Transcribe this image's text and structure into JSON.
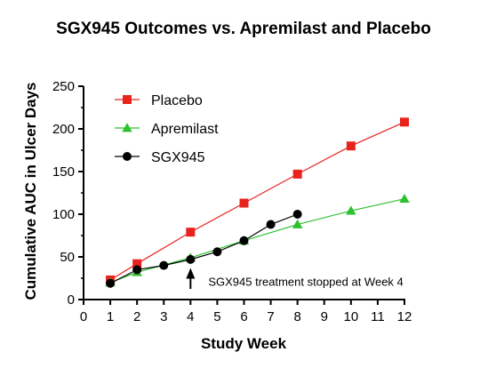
{
  "chart_data": {
    "type": "line",
    "title": "SGX945 Outcomes vs. Apremilast and Placebo",
    "xlabel": "Study Week",
    "ylabel": "Cumulative AUC in Ulcer Days",
    "xlim": [
      0,
      12
    ],
    "ylim": [
      0,
      250
    ],
    "xticks": [
      "0",
      "1",
      "2",
      "3",
      "4",
      "5",
      "6",
      "7",
      "8",
      "9",
      "10",
      "11",
      "12"
    ],
    "yticks": [
      "0",
      "50",
      "100",
      "150",
      "200",
      "250"
    ],
    "grid": false,
    "legend_position": "top-left",
    "series": [
      {
        "name": "Placebo",
        "color": "#e8231e",
        "marker": "square",
        "x": [
          1,
          2,
          4,
          6,
          8,
          10,
          12
        ],
        "y": [
          23,
          42,
          79,
          113,
          147,
          180,
          208
        ]
      },
      {
        "name": "Apremilast",
        "color": "#2ec02e",
        "marker": "triangle",
        "x": [
          1,
          2,
          4,
          6,
          8,
          10,
          12
        ],
        "y": [
          20,
          32,
          49,
          69,
          88,
          104,
          118
        ]
      },
      {
        "name": "SGX945",
        "color": "#000000",
        "marker": "circle",
        "x": [
          1,
          2,
          3,
          4,
          5,
          6,
          7,
          8
        ],
        "y": [
          19,
          35,
          40,
          47,
          56,
          69,
          88,
          100
        ]
      }
    ],
    "annotations": [
      {
        "text": "SGX945 treatment stopped at Week 4",
        "arrow_x": 4,
        "arrow_y": 37
      }
    ]
  }
}
